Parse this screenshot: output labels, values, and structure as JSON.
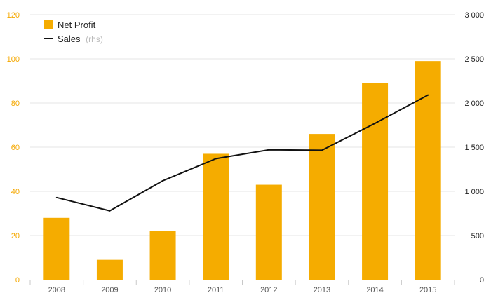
{
  "chart_data": {
    "type": "bar",
    "categories": [
      "2008",
      "2009",
      "2010",
      "2011",
      "2012",
      "2013",
      "2014",
      "2015"
    ],
    "series": [
      {
        "name": "Net Profit",
        "type": "bar",
        "axis": "left",
        "color": "#f5ac00",
        "values": [
          28,
          9,
          22,
          57,
          43,
          66,
          89,
          99
        ]
      },
      {
        "name": "Sales",
        "name_suffix": "(rhs)",
        "type": "line",
        "axis": "right",
        "color": "#111111",
        "values": [
          930,
          780,
          1120,
          1370,
          1470,
          1465,
          1770,
          2090
        ]
      }
    ],
    "y_left": {
      "ylim": [
        0,
        120
      ],
      "ticks": [
        "0",
        "20",
        "40",
        "60",
        "80",
        "100",
        "120"
      ],
      "tick_color": "#f5a800"
    },
    "y_right": {
      "ylim": [
        0,
        3000
      ],
      "ticks": [
        "0",
        "500",
        "1 000",
        "1 500",
        "2 000",
        "2 500",
        "3 000"
      ],
      "tick_color": "#222222"
    },
    "grid": true,
    "legend_position": "top-left",
    "title": "",
    "xlabel": "",
    "ylabel": ""
  }
}
